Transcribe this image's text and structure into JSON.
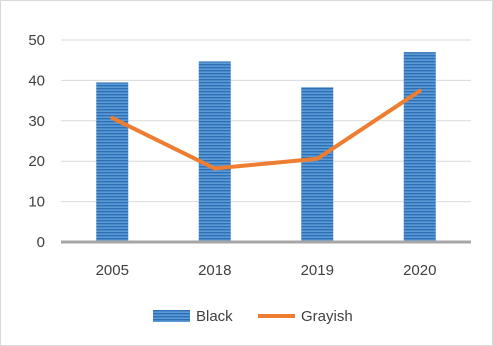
{
  "chart_data": {
    "type": "bar",
    "categories": [
      "2005",
      "2018",
      "2019",
      "2020"
    ],
    "series": [
      {
        "name": "Black",
        "type": "bar",
        "color": "#4a86c8",
        "values": [
          39.5,
          44.7,
          38.3,
          47.0
        ]
      },
      {
        "name": "Grayish",
        "type": "line",
        "color": "#ed7d31",
        "values": [
          30.7,
          18.2,
          20.6,
          37.4
        ]
      }
    ],
    "yticks": [
      0,
      10,
      20,
      30,
      40,
      50
    ],
    "ylim": [
      0,
      50
    ],
    "grid": true,
    "legend": "bottom"
  }
}
